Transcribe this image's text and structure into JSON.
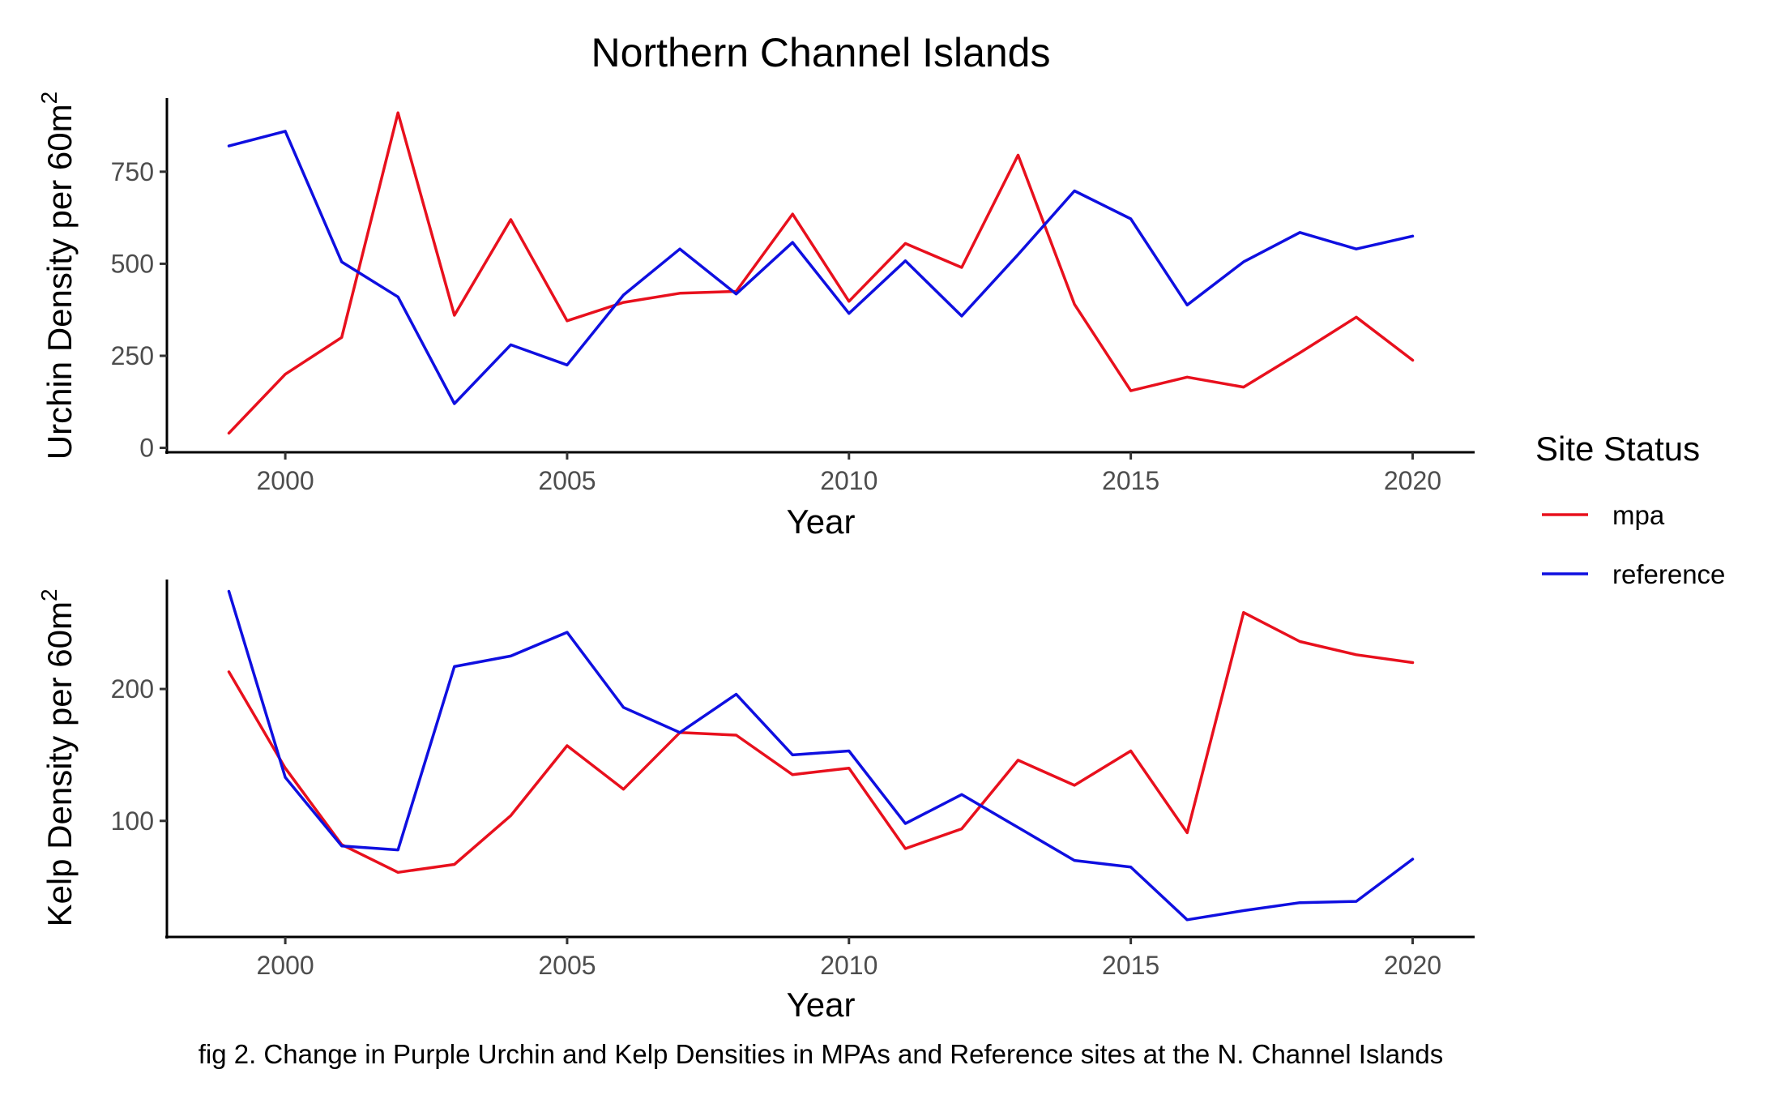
{
  "title": "Northern Channel Islands",
  "caption": "fig 2. Change in Purple Urchin and Kelp Densities in MPAs and Reference sites at the N. Channel Islands",
  "legend": {
    "title": "Site Status",
    "items": [
      {
        "label": "mpa",
        "color": "#e8101d"
      },
      {
        "label": "reference",
        "color": "#0f0fe0"
      }
    ]
  },
  "chart_data": [
    {
      "type": "line",
      "xlabel": "Year",
      "ylabel": "Urchin Density per 60m",
      "ylabel_sup": "2",
      "xlim": [
        1997.9,
        2021.1
      ],
      "ylim": [
        -12,
        950
      ],
      "xticks": [
        2000,
        2005,
        2010,
        2015,
        2020
      ],
      "yticks": [
        0,
        250,
        500,
        750
      ],
      "x": [
        1999,
        2000,
        2001,
        2002,
        2003,
        2004,
        2005,
        2006,
        2007,
        2008,
        2009,
        2010,
        2011,
        2012,
        2013,
        2014,
        2015,
        2016,
        2017,
        2018,
        2019,
        2020
      ],
      "series": [
        {
          "name": "mpa",
          "color": "#e8101d",
          "values": [
            40,
            200,
            300,
            910,
            360,
            620,
            345,
            395,
            420,
            425,
            635,
            398,
            555,
            490,
            795,
            390,
            155,
            192,
            165,
            258,
            355,
            238
          ]
        },
        {
          "name": "reference",
          "color": "#0f0fe0",
          "values": [
            820,
            860,
            505,
            410,
            120,
            280,
            225,
            415,
            540,
            418,
            558,
            365,
            508,
            358,
            525,
            698,
            622,
            388,
            505,
            585,
            540,
            575
          ]
        }
      ],
      "grid": false
    },
    {
      "type": "line",
      "xlabel": "Year",
      "ylabel": "Kelp Density per 60m",
      "ylabel_sup": "2",
      "xlim": [
        1997.9,
        2021.1
      ],
      "ylim": [
        12,
        283
      ],
      "xticks": [
        2000,
        2005,
        2010,
        2015,
        2020
      ],
      "yticks": [
        100,
        200
      ],
      "x": [
        1999,
        2000,
        2001,
        2002,
        2003,
        2004,
        2005,
        2006,
        2007,
        2008,
        2009,
        2010,
        2011,
        2012,
        2013,
        2014,
        2015,
        2016,
        2017,
        2018,
        2019,
        2020
      ],
      "series": [
        {
          "name": "mpa",
          "color": "#e8101d",
          "values": [
            213,
            140,
            82,
            61,
            67,
            104,
            157,
            124,
            167,
            165,
            135,
            140,
            79,
            94,
            146,
            127,
            153,
            91,
            258,
            236,
            226,
            220
          ]
        },
        {
          "name": "reference",
          "color": "#0f0fe0",
          "values": [
            274,
            133,
            81,
            78,
            217,
            225,
            243,
            186,
            167,
            196,
            150,
            153,
            98,
            120,
            95,
            70,
            65,
            25,
            32,
            38,
            39,
            71
          ]
        }
      ],
      "grid": false
    }
  ]
}
